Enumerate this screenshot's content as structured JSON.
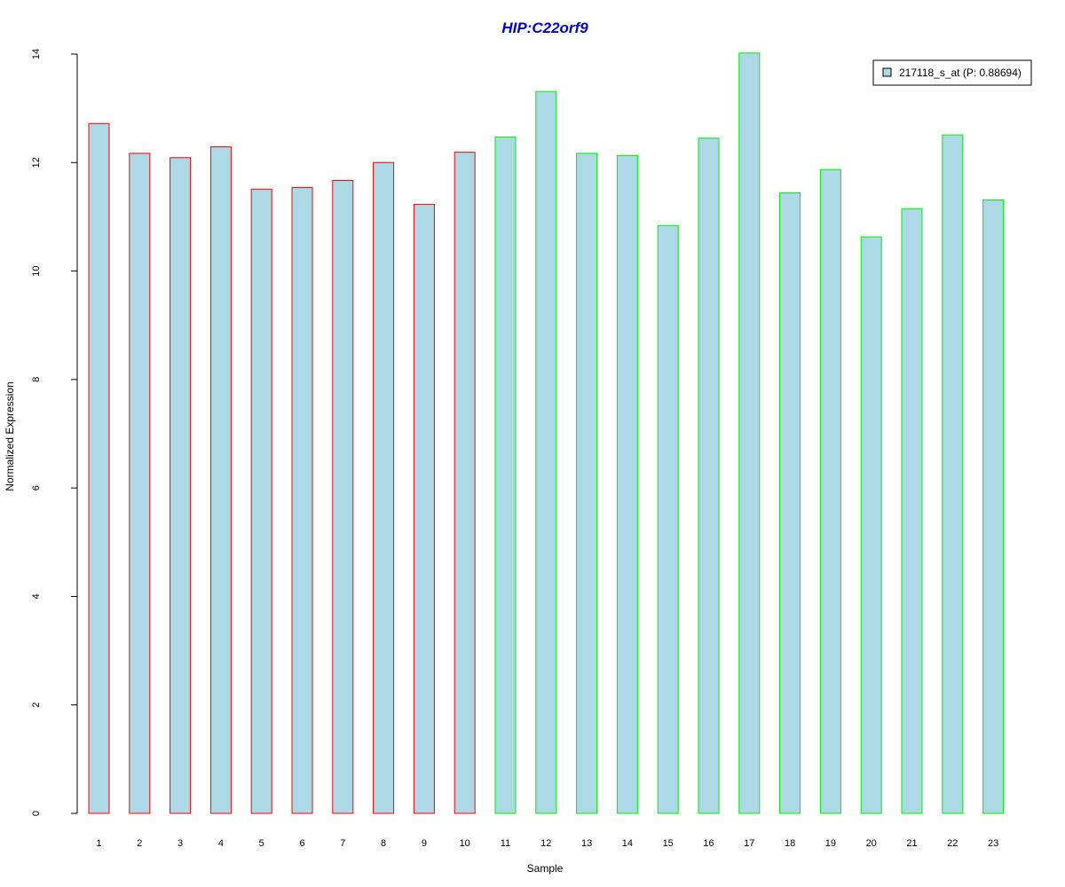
{
  "chart_data": {
    "type": "bar",
    "title": "HIP:C22orf9",
    "xlabel": "Sample",
    "ylabel": "Normalized Expression",
    "ylim": [
      0,
      14
    ],
    "yticks": [
      0,
      2,
      4,
      6,
      8,
      10,
      12,
      14
    ],
    "categories": [
      "1",
      "2",
      "3",
      "4",
      "5",
      "6",
      "7",
      "8",
      "9",
      "10",
      "11",
      "12",
      "13",
      "14",
      "15",
      "16",
      "17",
      "18",
      "19",
      "20",
      "21",
      "22",
      "23"
    ],
    "series": [
      {
        "name": "217118_s_at (P: 0.88694)",
        "values": [
          12.72,
          12.17,
          12.09,
          12.29,
          11.51,
          11.54,
          11.67,
          12.0,
          11.23,
          12.19,
          12.47,
          13.31,
          12.17,
          12.13,
          10.84,
          12.45,
          14.02,
          11.44,
          11.87,
          10.63,
          11.15,
          12.51,
          11.31
        ]
      }
    ],
    "group_border_colors": [
      "#ff0000",
      "#ff0000",
      "#ff0000",
      "#ff0000",
      "#ff0000",
      "#ff0000",
      "#ff0000",
      "#ff0000",
      "#ff0000",
      "#ff0000",
      "#00ee00",
      "#00ee00",
      "#00ee00",
      "#00ee00",
      "#00ee00",
      "#00ee00",
      "#00ee00",
      "#00ee00",
      "#00ee00",
      "#00ee00",
      "#00ee00",
      "#00ee00",
      "#00ee00"
    ],
    "fill_color": "#add8e6",
    "title_color": "#0000cd",
    "legend_position": "top-right",
    "grid": false
  }
}
